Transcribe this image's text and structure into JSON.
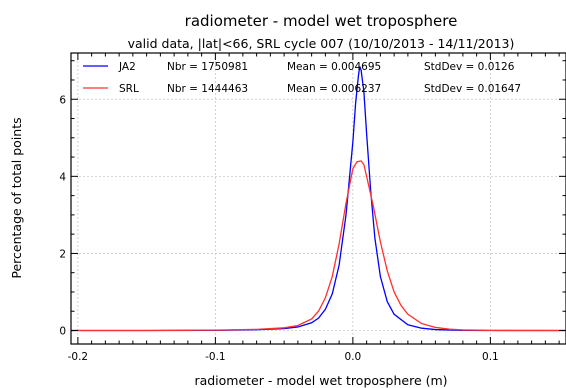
{
  "chart_data": {
    "type": "line",
    "title": "radiometer - model wet troposphere",
    "subtitle": "valid data, |lat|<66, SRL cycle 007 (10/10/2013 - 14/11/2013)",
    "xlabel": "radiometer - model wet troposphere (m)",
    "ylabel": "Percentage of total points",
    "xlim": [
      -0.205,
      0.155
    ],
    "ylim": [
      -0.35,
      7.2
    ],
    "x_ticks": [
      -0.2,
      -0.1,
      0.0,
      0.1
    ],
    "x_tick_labels": [
      "-0.2",
      "-0.1",
      "0.0",
      "0.1"
    ],
    "y_ticks": [
      0,
      2,
      4,
      6
    ],
    "y_tick_labels": [
      "0",
      "2",
      "4",
      "6"
    ],
    "grid": true,
    "legend_position": "top",
    "series": [
      {
        "name": "JA2",
        "color": "#0000ff",
        "nbr_text": "Nbr = 1750981",
        "mean_text": "Mean = 0.004695",
        "stddev_text": "StdDev = 0.0126",
        "x": [
          -0.205,
          -0.15,
          -0.1,
          -0.07,
          -0.05,
          -0.04,
          -0.03,
          -0.025,
          -0.02,
          -0.015,
          -0.01,
          -0.005,
          0.0,
          0.002,
          0.004,
          0.005,
          0.006,
          0.008,
          0.01,
          0.013,
          0.016,
          0.02,
          0.025,
          0.03,
          0.04,
          0.05,
          0.06,
          0.08,
          0.1,
          0.155
        ],
        "y": [
          0.0,
          0.0,
          0.005,
          0.02,
          0.05,
          0.09,
          0.2,
          0.32,
          0.55,
          0.95,
          1.7,
          3.0,
          4.9,
          5.9,
          6.6,
          6.85,
          6.75,
          6.2,
          5.1,
          3.6,
          2.4,
          1.4,
          0.75,
          0.42,
          0.15,
          0.06,
          0.025,
          0.005,
          0.0,
          0.0
        ]
      },
      {
        "name": "SRL",
        "color": "#ff3030",
        "nbr_text": "Nbr = 1444463",
        "mean_text": "Mean = 0.006237",
        "stddev_text": "StdDev = 0.01647",
        "x": [
          -0.205,
          -0.15,
          -0.1,
          -0.07,
          -0.05,
          -0.04,
          -0.03,
          -0.025,
          -0.02,
          -0.015,
          -0.01,
          -0.005,
          0.0,
          0.003,
          0.006,
          0.008,
          0.01,
          0.015,
          0.02,
          0.025,
          0.03,
          0.035,
          0.04,
          0.05,
          0.06,
          0.07,
          0.08,
          0.1,
          0.155
        ],
        "y": [
          0.0,
          0.0,
          0.01,
          0.03,
          0.07,
          0.13,
          0.3,
          0.5,
          0.85,
          1.4,
          2.25,
          3.3,
          4.2,
          4.38,
          4.4,
          4.3,
          4.0,
          3.2,
          2.3,
          1.55,
          1.0,
          0.65,
          0.42,
          0.18,
          0.08,
          0.035,
          0.015,
          0.003,
          0.0
        ]
      }
    ]
  }
}
